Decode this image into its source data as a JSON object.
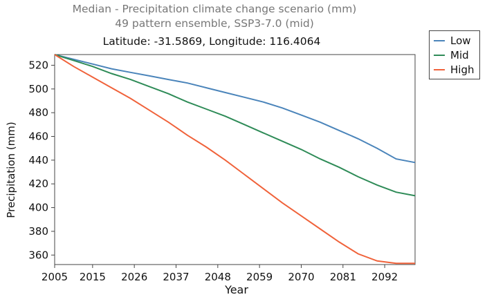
{
  "chart_data": {
    "type": "line",
    "title": "Median - Precipitation climate change scenario (mm)",
    "subtitle": "49 pattern ensemble, SSP3-7.0 (mid)",
    "location": "Latitude: -31.5869, Longitude: 116.4064",
    "xlabel": "Year",
    "ylabel": "Precipitation (mm)",
    "xlim": [
      2005,
      2100
    ],
    "ylim": [
      352,
      529
    ],
    "x_ticks": [
      2005,
      2015,
      2026,
      2037,
      2048,
      2059,
      2070,
      2081,
      2092
    ],
    "y_ticks": [
      360,
      380,
      400,
      420,
      440,
      460,
      480,
      500,
      520
    ],
    "legend_position": "top-right outside",
    "x": [
      2005,
      2010,
      2015,
      2020,
      2025,
      2030,
      2035,
      2040,
      2045,
      2050,
      2055,
      2060,
      2065,
      2070,
      2075,
      2080,
      2085,
      2090,
      2095,
      2100
    ],
    "series": [
      {
        "name": "Low",
        "color": "#4a84ba",
        "values": [
          529,
          525,
          521,
          517,
          514,
          511,
          508,
          505,
          501,
          497,
          493,
          489,
          484,
          478,
          472,
          465,
          458,
          450,
          441,
          438
        ]
      },
      {
        "name": "Mid",
        "color": "#2e8b57",
        "values": [
          529,
          524,
          519,
          513,
          508,
          502,
          496,
          489,
          483,
          477,
          470,
          463,
          456,
          449,
          441,
          434,
          426,
          419,
          413,
          410
        ]
      },
      {
        "name": "High",
        "color": "#f0623a",
        "values": [
          529,
          519,
          510,
          501,
          492,
          482,
          472,
          461,
          451,
          440,
          428,
          416,
          404,
          393,
          382,
          371,
          361,
          355,
          353,
          353
        ]
      }
    ]
  }
}
